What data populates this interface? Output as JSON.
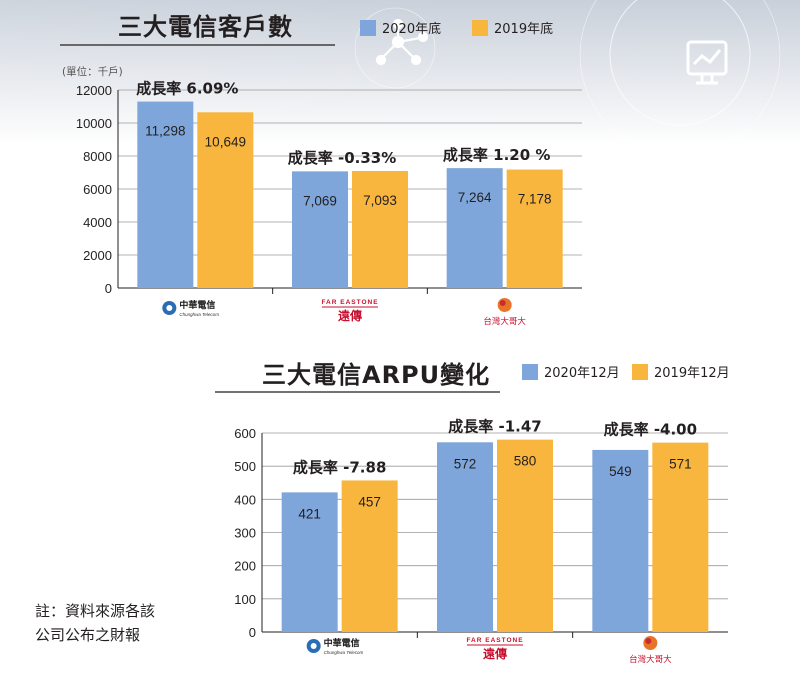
{
  "colors": {
    "series_2020": "#7ea6da",
    "series_2019": "#f8b63e",
    "text": "#231f20",
    "grid": "#9a9a9a",
    "header_bg": "#d9dee6"
  },
  "icons": [
    "network-graph-icon",
    "monitor-chart-icon"
  ],
  "footnote": [
    "註：資料來源各該",
    "公司公布之財報"
  ],
  "chart_data": [
    {
      "type": "bar",
      "title": "三大電信客戶數",
      "ylabel": "(單位：千戶)",
      "ylim": [
        0,
        12000
      ],
      "yticks": [
        0,
        2000,
        4000,
        6000,
        8000,
        10000,
        12000
      ],
      "categories": [
        "中華電信",
        "遠傳",
        "台灣大哥大"
      ],
      "category_logo_text": [
        {
          "main": "中華電信",
          "sub": "Chunghwa Telecom"
        },
        {
          "main": "遠傳",
          "sub": "FAR EASTONE"
        },
        {
          "main": "台灣大哥大",
          "sub": ""
        }
      ],
      "series": [
        {
          "name": "2020年底",
          "values": [
            11298,
            7069,
            7264
          ],
          "labels": [
            "11,298",
            "7,069",
            "7,264"
          ]
        },
        {
          "name": "2019年底",
          "values": [
            10649,
            7093,
            7178
          ],
          "labels": [
            "10,649",
            "7,093",
            "7,178"
          ]
        }
      ],
      "growth_labels": [
        "成長率 6.09%",
        "成長率 -0.33%",
        "成長率 1.20 %"
      ],
      "grid": true,
      "legend_position": "top"
    },
    {
      "type": "bar",
      "title": "三大電信ARPU變化",
      "ylim": [
        0,
        600
      ],
      "yticks": [
        0,
        100,
        200,
        300,
        400,
        500,
        600
      ],
      "categories": [
        "中華電信",
        "遠傳",
        "台灣大哥大"
      ],
      "category_logo_text": [
        {
          "main": "中華電信",
          "sub": "Chunghwa Telecom"
        },
        {
          "main": "遠傳",
          "sub": "FAR EASTONE"
        },
        {
          "main": "台灣大哥大",
          "sub": ""
        }
      ],
      "series": [
        {
          "name": "2020年12月",
          "values": [
            421,
            572,
            549
          ],
          "labels": [
            "421",
            "572",
            "549"
          ]
        },
        {
          "name": "2019年12月",
          "values": [
            457,
            580,
            571
          ],
          "labels": [
            "457",
            "580",
            "571"
          ]
        }
      ],
      "growth_labels": [
        "成長率 -7.88",
        "成長率 -1.47",
        "成長率 -4.00"
      ],
      "grid": true,
      "legend_position": "top"
    }
  ]
}
